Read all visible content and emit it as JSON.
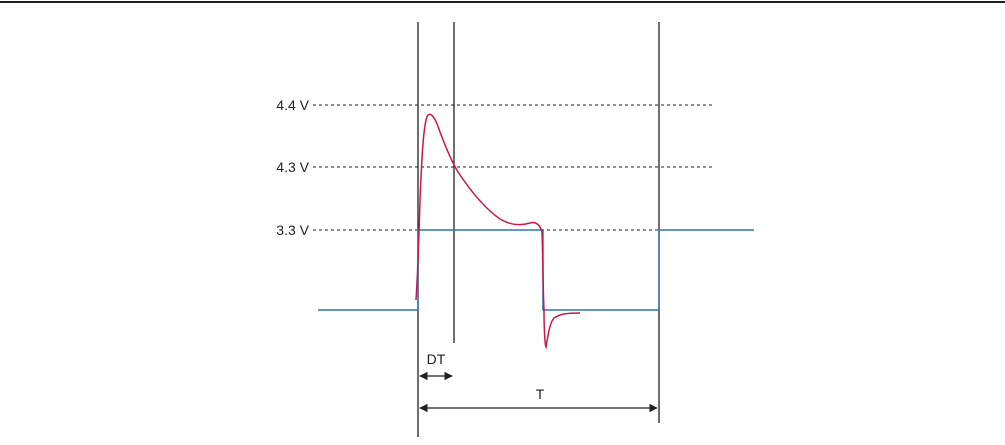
{
  "levels": [
    {
      "key": "l44",
      "label": "4.4 V"
    },
    {
      "key": "l43",
      "label": "4.3 V"
    },
    {
      "key": "l33",
      "label": "3.3 V"
    }
  ],
  "dimensions": {
    "dt_label": "DT",
    "t_label": "T"
  },
  "colors": {
    "ideal_signal": "#2e75b6",
    "actual_signal": "#c8184a",
    "lines": "#231f20"
  }
}
